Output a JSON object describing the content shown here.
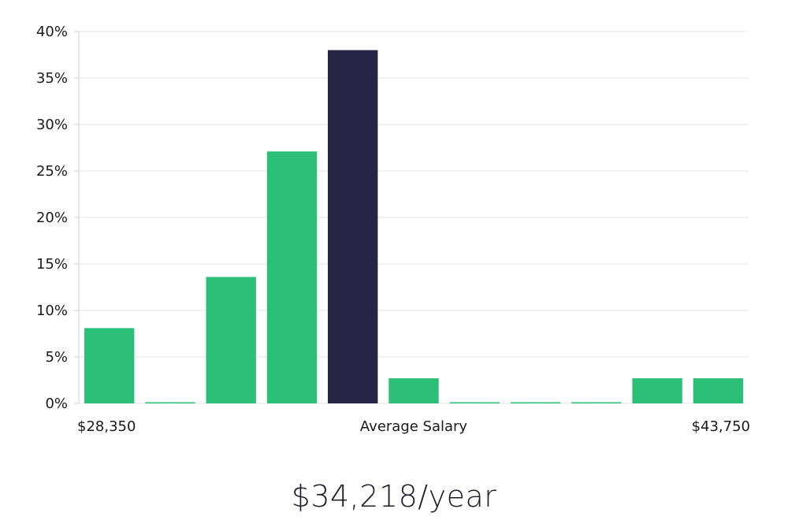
{
  "chart_data": {
    "type": "bar",
    "ylim": [
      0,
      40
    ],
    "yticks": [
      0,
      5,
      10,
      15,
      20,
      25,
      30,
      35,
      40
    ],
    "ytick_suffix": "%",
    "grid": true,
    "values": [
      8.1,
      0,
      13.6,
      27.1,
      38.0,
      2.7,
      0,
      0,
      0,
      2.7,
      2.7
    ],
    "highlight_index": 4,
    "colors": {
      "bar": "#2bbf77",
      "highlight": "#272546",
      "grid": "#e3e3e3",
      "axis": "#cfcfcf"
    },
    "x_labels": {
      "left": "$28,350",
      "center": "Average Salary",
      "right": "$43,750"
    }
  },
  "summary": {
    "average_salary": "$34,218/year"
  }
}
